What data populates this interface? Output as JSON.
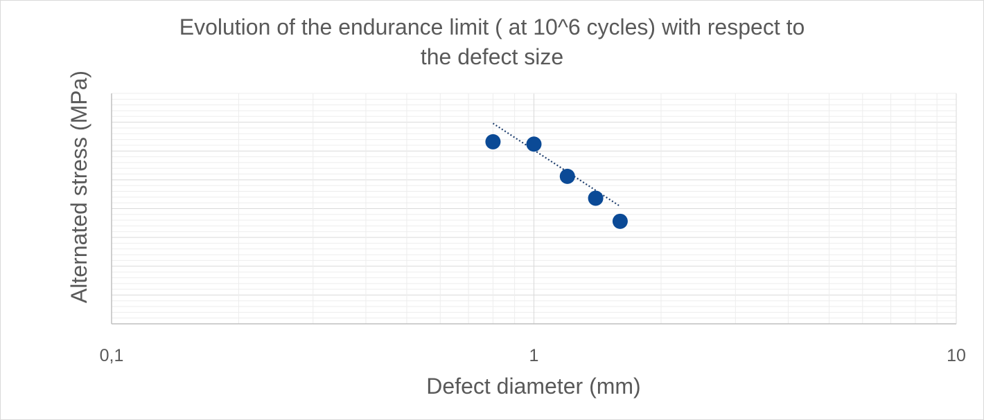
{
  "chart_data": {
    "type": "scatter",
    "title": [
      "Evolution of the endurance limit ( at 10^6 cycles)  with respect to",
      "the defect size"
    ],
    "xlabel": "Defect diameter (mm)",
    "ylabel": "Alternated stress (MPa)",
    "x_scale": "log",
    "xlim": [
      0.1,
      10
    ],
    "x_ticks": [
      0.1,
      1,
      10
    ],
    "x_tick_labels": [
      "0,1",
      "1",
      "10"
    ],
    "y_tick_labels": [],
    "grid": true,
    "legend": "none",
    "series": [
      {
        "x": [
          0.8,
          1.0,
          1.2,
          1.4,
          1.6
        ],
        "y": [
          0.21,
          0.22,
          0.36,
          0.455,
          0.555
        ],
        "color": "#0b4a96",
        "marker": "circle"
      }
    ],
    "trendline": {
      "style": "dotted",
      "color": "#1f3f6e",
      "x": [
        0.8,
        1.6
      ],
      "y": [
        0.13,
        0.49
      ]
    },
    "y_units": "relative depth from top of plot (0 = top, 1 = bottom), no values printed"
  },
  "colors": {
    "text": "#595959",
    "grid_major": "#d9d9d9",
    "grid_minor": "#ededed",
    "axis": "#bfbfbf",
    "marker": "#0b4a96"
  }
}
